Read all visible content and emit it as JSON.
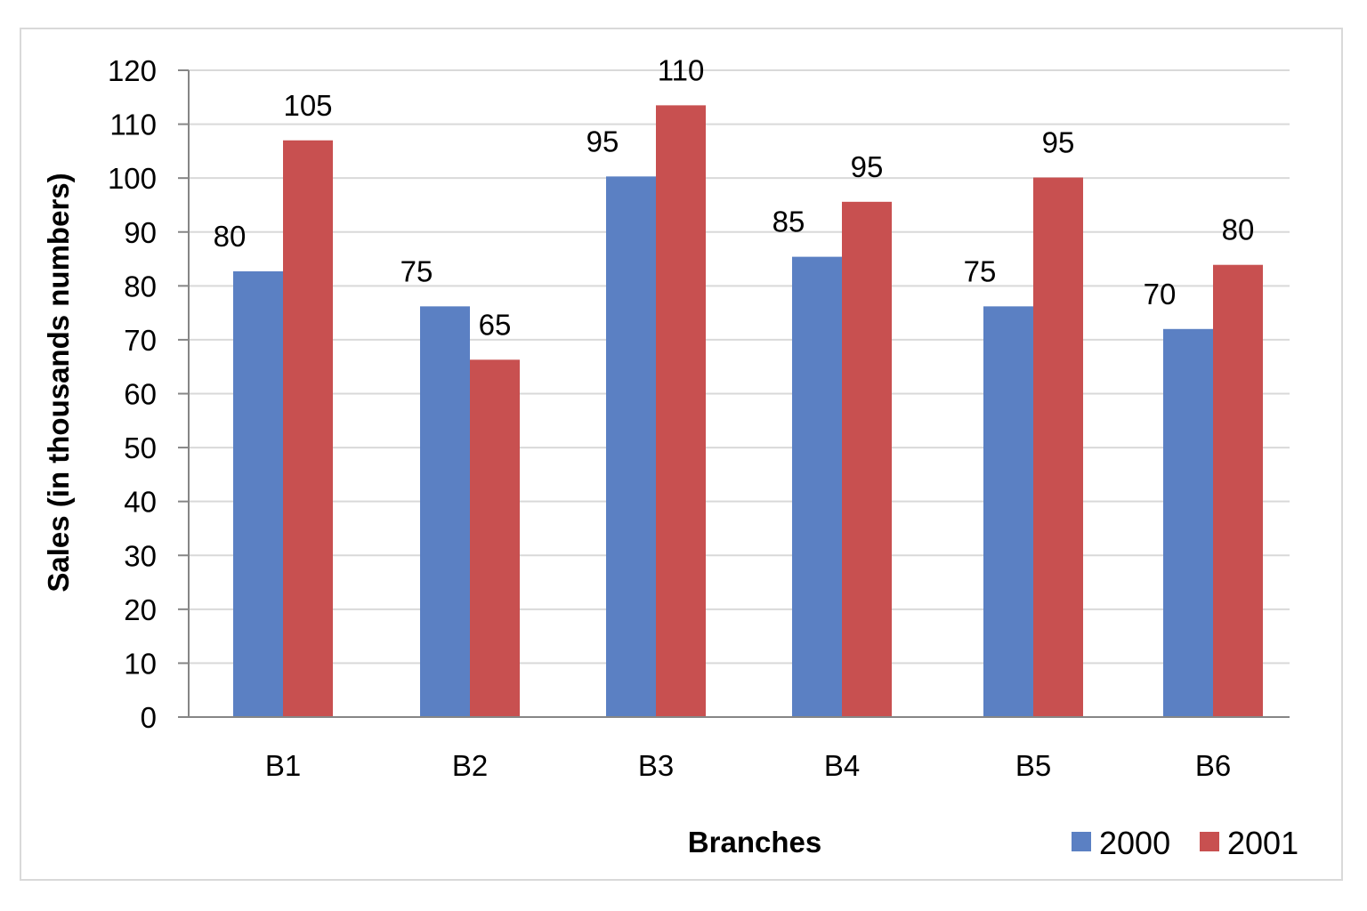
{
  "chart_data": {
    "type": "bar",
    "categories": [
      "B1",
      "B2",
      "B3",
      "B4",
      "B5",
      "B6"
    ],
    "series": [
      {
        "name": "2000",
        "color": "#5b80c3",
        "values": [
          80,
          75,
          95,
          85,
          75,
          70
        ]
      },
      {
        "name": "2001",
        "color": "#c85050",
        "values": [
          105,
          65,
          110,
          95,
          95,
          80
        ]
      }
    ],
    "bar_heights": [
      [
        82.7,
        76.2,
        100.3,
        85.4,
        76.2,
        72.0
      ],
      [
        107.0,
        66.3,
        113.5,
        95.6,
        100.1,
        83.9
      ]
    ],
    "xlabel": "Branches",
    "ylabel": "Sales (in thousands numbers)",
    "ylim": [
      0,
      120
    ],
    "yticks": [
      0,
      10,
      20,
      30,
      40,
      50,
      60,
      70,
      80,
      90,
      100,
      110,
      120
    ],
    "grid": "horizontal",
    "legend_position": "bottom-right",
    "gridline_color": "#d9d9d9",
    "axis_color": "#868686"
  }
}
